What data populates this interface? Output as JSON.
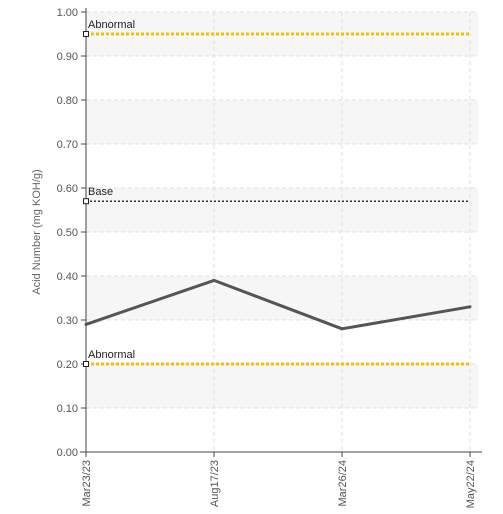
{
  "chart_data": {
    "type": "line",
    "title": "",
    "xlabel": "",
    "ylabel": "Acid Number (mg KOH/g)",
    "ylim": [
      0,
      1.0
    ],
    "yticks": [
      "0.00",
      "0.10",
      "0.20",
      "0.30",
      "0.40",
      "0.50",
      "0.60",
      "0.70",
      "0.80",
      "0.90",
      "1.00"
    ],
    "categories": [
      "Mar23/23",
      "Aug17/23",
      "Mar26/24",
      "May22/24"
    ],
    "series": [
      {
        "values": [
          0.29,
          0.39,
          0.28,
          0.33
        ],
        "color": "#555555"
      }
    ],
    "reference_lines": [
      {
        "label": "Abnormal",
        "value": 0.95,
        "color": "#f2c200",
        "style": "dotted"
      },
      {
        "label": "Base",
        "value": 0.57,
        "color": "#333333",
        "style": "dotted"
      },
      {
        "label": "Abnormal",
        "value": 0.2,
        "color": "#f2c200",
        "style": "dotted"
      }
    ],
    "grid": true,
    "band_fill": "#f6f6f6"
  }
}
